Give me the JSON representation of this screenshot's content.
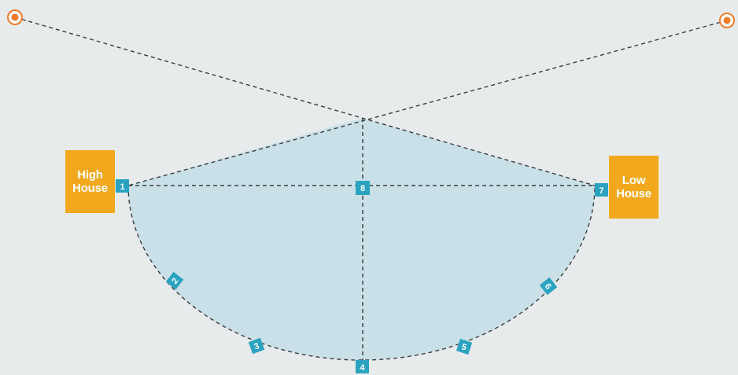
{
  "houses": {
    "high": "High\nHouse",
    "low": "Low\nHouse"
  },
  "stations": [
    "1",
    "2",
    "3",
    "4",
    "5",
    "6",
    "7",
    "8"
  ],
  "colors": {
    "background": "#e7ebeb",
    "field": "#c9e0e8",
    "house": "#f2a81c",
    "marker": "#2aa3c0",
    "target": "#ef7a2a",
    "line": "#3d3d3d"
  },
  "icons": {
    "left_target": "target-icon",
    "right_target": "target-icon"
  }
}
